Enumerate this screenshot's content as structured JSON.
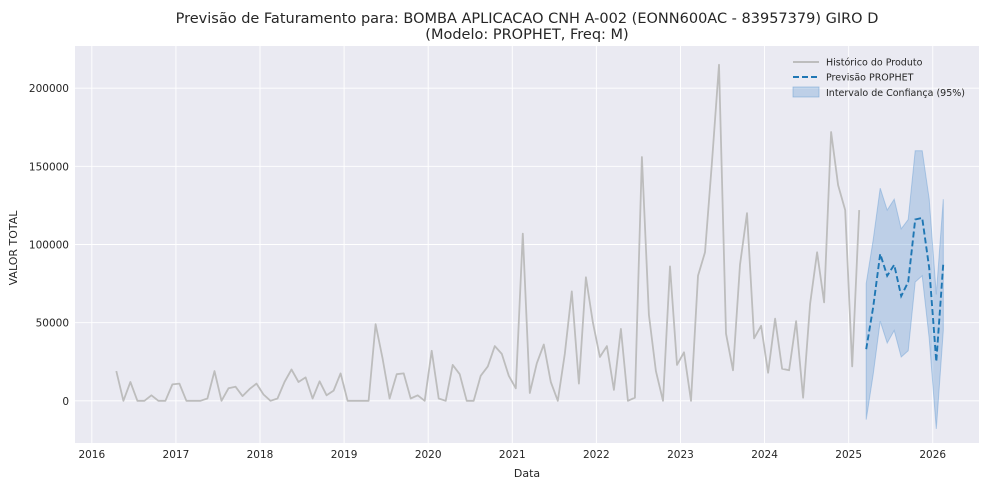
{
  "chart_data": {
    "type": "line",
    "title_line1": "Previsão de Faturamento para: BOMBA APLICACAO CNH A-002 (EONN600AC - 83957379) GIRO D",
    "title_line2": "(Modelo: PROPHET, Freq: M)",
    "xlabel": "Data",
    "ylabel": "VALOR TOTAL",
    "xlim": [
      2015.8,
      2026.55
    ],
    "ylim": [
      -27000,
      227000
    ],
    "x_ticks": [
      2016,
      2017,
      2018,
      2019,
      2020,
      2021,
      2022,
      2023,
      2024,
      2025,
      2026
    ],
    "y_ticks": [
      0,
      50000,
      100000,
      150000,
      200000
    ],
    "grid": true,
    "legend_position": "top-right",
    "legend": {
      "history": "Histórico do Produto",
      "forecast": "Previsão PROPHET",
      "interval": "Intervalo de Confiança (95%)"
    },
    "colors": {
      "background": "#eaeaf2",
      "history": "#bdbdbd",
      "forecast": "#1f77b4",
      "interval": "#6a9fd4"
    },
    "history": {
      "start": "2016-04",
      "values": [
        19000,
        0,
        12000,
        0,
        0,
        3500,
        0,
        0,
        10500,
        11000,
        0,
        0,
        0,
        1500,
        19000,
        0,
        8000,
        9000,
        3000,
        7500,
        11000,
        4000,
        0,
        1500,
        12000,
        20000,
        12000,
        15000,
        1500,
        12500,
        3500,
        6500,
        17500,
        0,
        0,
        0,
        0,
        49000,
        27000,
        1500,
        17000,
        17500,
        1500,
        3500,
        0,
        32000,
        1500,
        0,
        23000,
        17000,
        0,
        0,
        16000,
        22000,
        35000,
        30000,
        16000,
        8000,
        107000,
        5000,
        24000,
        36000,
        12000,
        0,
        30000,
        70000,
        11000,
        79000,
        50000,
        28000,
        35000,
        7000,
        46000,
        0,
        2000,
        156000,
        55000,
        19000,
        0,
        86000,
        23000,
        31000,
        0,
        80000,
        95000,
        153000,
        215000,
        43000,
        19500,
        87000,
        120000,
        40000,
        48000,
        18000,
        52500,
        20500,
        19500,
        51000,
        2000,
        62000,
        95000,
        63000,
        172000,
        138000,
        122000,
        22000,
        122000
      ]
    },
    "forecast": {
      "start": "2025-03",
      "values": [
        33000,
        60000,
        94000,
        80000,
        87000,
        67000,
        76000,
        116000,
        117000,
        85000,
        25000,
        88000
      ],
      "lower": [
        -12000,
        17000,
        51000,
        37000,
        45000,
        28000,
        32000,
        76000,
        80000,
        40000,
        -18000,
        45000
      ],
      "upper": [
        75000,
        103000,
        136000,
        122000,
        129000,
        110000,
        116000,
        160000,
        160000,
        129000,
        68000,
        129000
      ]
    }
  }
}
